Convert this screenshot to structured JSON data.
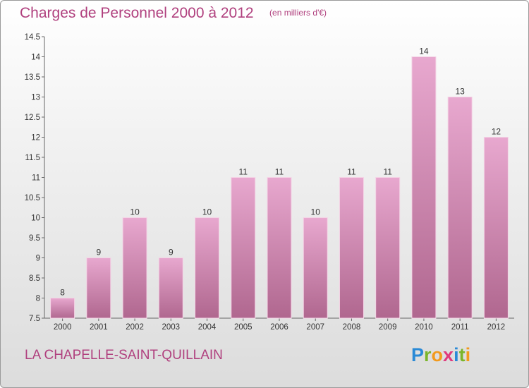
{
  "header": {
    "title": "Charges de Personnel 2000 à 2012",
    "subtitle": "(en milliers d'€)"
  },
  "footer": {
    "commune": "LA CHAPELLE-SAINT-QUILLAIN"
  },
  "brand": {
    "name": "Proxiti",
    "letters": [
      {
        "char": "P",
        "color": "#2a8ad6"
      },
      {
        "char": "r",
        "color": "#7ab52a"
      },
      {
        "char": "o",
        "color": "#f29a1d"
      },
      {
        "char": "x",
        "color": "#e0397d"
      },
      {
        "char": "i",
        "color": "#2a8ad6"
      },
      {
        "char": "t",
        "color": "#7ab52a"
      },
      {
        "char": "i",
        "color": "#f29a1d"
      }
    ]
  },
  "colors": {
    "title": "#b0407e",
    "bar_top": "#e8a8cf",
    "bar_bottom": "#b0678f",
    "axis": "#666666"
  },
  "chart_data": {
    "type": "bar",
    "categories": [
      "2000",
      "2001",
      "2002",
      "2003",
      "2004",
      "2005",
      "2006",
      "2007",
      "2008",
      "2009",
      "2010",
      "2011",
      "2012"
    ],
    "values": [
      8,
      9,
      10,
      9,
      10,
      11,
      11,
      10,
      11,
      11,
      14,
      13,
      12
    ],
    "value_labels": [
      "8",
      "9",
      "10",
      "9",
      "10",
      "11",
      "11",
      "10",
      "11",
      "11",
      "14",
      "13",
      "12"
    ],
    "ylim": [
      7.5,
      14.5
    ],
    "yticks": [
      7.5,
      8,
      8.5,
      9,
      9.5,
      10,
      10.5,
      11,
      11.5,
      12,
      12.5,
      13,
      13.5,
      14,
      14.5
    ],
    "ytick_labels": [
      "7.5",
      "8",
      "8.5",
      "9",
      "9.5",
      "10",
      "10.5",
      "11",
      "11.5",
      "12",
      "12.5",
      "13",
      "13.5",
      "14",
      "14.5"
    ],
    "xlabel": "",
    "ylabel": "",
    "grid": false
  }
}
